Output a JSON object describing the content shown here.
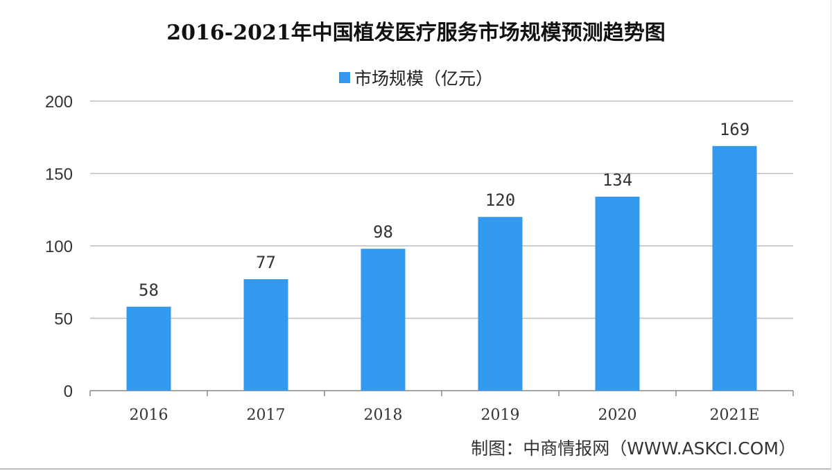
{
  "chart_data": {
    "type": "bar",
    "title": "2016-2021年中国植发医疗服务市场规模预测趋势图",
    "categories": [
      "2016",
      "2017",
      "2018",
      "2019",
      "2020",
      "2021E"
    ],
    "series": [
      {
        "name": "市场规模（亿元）",
        "values": [
          58,
          77,
          98,
          120,
          134,
          169
        ]
      }
    ],
    "data_labels": [
      "58",
      "77",
      "98",
      "120",
      "134",
      "169"
    ],
    "yticks": [
      "0",
      "50",
      "100",
      "150",
      "200"
    ],
    "ylim": [
      0,
      200
    ],
    "grid": true,
    "legend_position": "top",
    "bar_color": "#3399ee"
  },
  "source": "制图：中商情报网（WWW.ASKCI.COM）"
}
